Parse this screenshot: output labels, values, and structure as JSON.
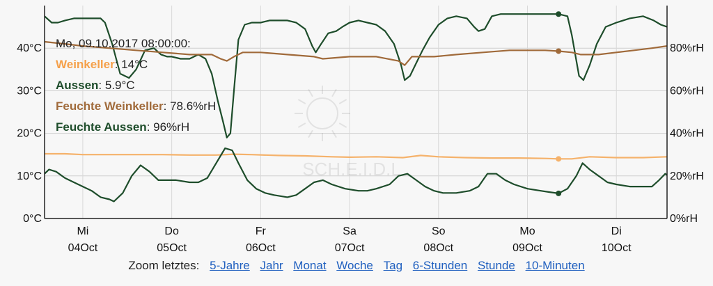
{
  "chart_data": {
    "type": "line",
    "title": "",
    "y_left": {
      "ylim": [
        0,
        50
      ],
      "ticks": [
        "0°C",
        "10°C",
        "20°C",
        "30°C",
        "40°C"
      ],
      "tick_values": [
        0,
        10,
        20,
        30,
        40
      ]
    },
    "y_right": {
      "ylim": [
        0,
        100
      ],
      "ticks": [
        "0%rH",
        "20%rH",
        "40%rH",
        "60%rH",
        "80%rH"
      ],
      "tick_values": [
        0,
        20,
        40,
        60,
        80
      ]
    },
    "x_days": [
      {
        "day": "Mi",
        "date": "04Oct"
      },
      {
        "day": "Do",
        "date": "05Oct"
      },
      {
        "day": "Fr",
        "date": "06Oct"
      },
      {
        "day": "Sa",
        "date": "07Oct"
      },
      {
        "day": "So",
        "date": "08Oct"
      },
      {
        "day": "Mo",
        "date": "09Oct"
      },
      {
        "day": "Di",
        "date": "10Oct"
      }
    ],
    "x_range_days": [
      -0.43,
      6.57
    ],
    "grid": true,
    "watermark": "SCH.E.I.D.L",
    "series": [
      {
        "name": "Feuchte Aussen",
        "axis": "right",
        "color": "#1e4d2b",
        "points": [
          [
            -0.43,
            95
          ],
          [
            -0.35,
            92
          ],
          [
            -0.28,
            92
          ],
          [
            -0.2,
            93
          ],
          [
            -0.1,
            94
          ],
          [
            0.0,
            94
          ],
          [
            0.1,
            94
          ],
          [
            0.2,
            94
          ],
          [
            0.25,
            92
          ],
          [
            0.33,
            82
          ],
          [
            0.42,
            68
          ],
          [
            0.52,
            66
          ],
          [
            0.6,
            70
          ],
          [
            0.7,
            79
          ],
          [
            0.8,
            80
          ],
          [
            0.88,
            77
          ],
          [
            0.95,
            76
          ],
          [
            1.0,
            76
          ],
          [
            1.1,
            75
          ],
          [
            1.2,
            75
          ],
          [
            1.3,
            77
          ],
          [
            1.38,
            75
          ],
          [
            1.45,
            68
          ],
          [
            1.52,
            55
          ],
          [
            1.58,
            45
          ],
          [
            1.62,
            38
          ],
          [
            1.66,
            40
          ],
          [
            1.7,
            60
          ],
          [
            1.75,
            84
          ],
          [
            1.82,
            91
          ],
          [
            1.9,
            92
          ],
          [
            2.0,
            92
          ],
          [
            2.1,
            93
          ],
          [
            2.2,
            93
          ],
          [
            2.3,
            93
          ],
          [
            2.4,
            92
          ],
          [
            2.5,
            89
          ],
          [
            2.58,
            81
          ],
          [
            2.62,
            78
          ],
          [
            2.68,
            82
          ],
          [
            2.76,
            87
          ],
          [
            2.85,
            88
          ],
          [
            2.92,
            90
          ],
          [
            3.0,
            92
          ],
          [
            3.1,
            93
          ],
          [
            3.2,
            92
          ],
          [
            3.3,
            91
          ],
          [
            3.4,
            88
          ],
          [
            3.5,
            82
          ],
          [
            3.58,
            72
          ],
          [
            3.62,
            65
          ],
          [
            3.68,
            67
          ],
          [
            3.75,
            73
          ],
          [
            3.82,
            79
          ],
          [
            3.9,
            85
          ],
          [
            4.0,
            91
          ],
          [
            4.1,
            94
          ],
          [
            4.2,
            95
          ],
          [
            4.32,
            94
          ],
          [
            4.4,
            90
          ],
          [
            4.45,
            88
          ],
          [
            4.52,
            89
          ],
          [
            4.6,
            95
          ],
          [
            4.7,
            96
          ],
          [
            4.8,
            96
          ],
          [
            4.95,
            96
          ],
          [
            5.1,
            96
          ],
          [
            5.3,
            96
          ],
          [
            5.35,
            96
          ],
          [
            5.45,
            95
          ],
          [
            5.5,
            86
          ],
          [
            5.58,
            67
          ],
          [
            5.63,
            65
          ],
          [
            5.7,
            72
          ],
          [
            5.78,
            82
          ],
          [
            5.88,
            90
          ],
          [
            6.0,
            92
          ],
          [
            6.15,
            94
          ],
          [
            6.3,
            95
          ],
          [
            6.42,
            93
          ],
          [
            6.5,
            91
          ],
          [
            6.57,
            90
          ]
        ]
      },
      {
        "name": "Feuchte Weinkeller",
        "axis": "right",
        "color": "#a06a3a",
        "points": [
          [
            -0.43,
            83
          ],
          [
            -0.2,
            82
          ],
          [
            0.0,
            81
          ],
          [
            0.3,
            80
          ],
          [
            0.6,
            79
          ],
          [
            0.9,
            78
          ],
          [
            1.2,
            77
          ],
          [
            1.45,
            77
          ],
          [
            1.55,
            75
          ],
          [
            1.62,
            74
          ],
          [
            1.7,
            76
          ],
          [
            1.8,
            78
          ],
          [
            2.0,
            78
          ],
          [
            2.3,
            77
          ],
          [
            2.6,
            76
          ],
          [
            2.7,
            75
          ],
          [
            3.0,
            76
          ],
          [
            3.3,
            76
          ],
          [
            3.55,
            74
          ],
          [
            3.62,
            72
          ],
          [
            3.7,
            76
          ],
          [
            3.8,
            76
          ],
          [
            3.95,
            76
          ],
          [
            4.2,
            77
          ],
          [
            4.5,
            78
          ],
          [
            4.8,
            79
          ],
          [
            5.0,
            79
          ],
          [
            5.2,
            79
          ],
          [
            5.35,
            78.6
          ],
          [
            5.5,
            78
          ],
          [
            5.6,
            77
          ],
          [
            5.8,
            77
          ],
          [
            6.0,
            78
          ],
          [
            6.2,
            79
          ],
          [
            6.4,
            80
          ],
          [
            6.57,
            81
          ]
        ]
      },
      {
        "name": "Weinkeller",
        "axis": "left",
        "color": "#f5b26b",
        "points": [
          [
            -0.43,
            15.2
          ],
          [
            -0.2,
            15.2
          ],
          [
            0.0,
            15.0
          ],
          [
            0.3,
            15.0
          ],
          [
            0.6,
            15.0
          ],
          [
            0.9,
            15.0
          ],
          [
            1.2,
            14.9
          ],
          [
            1.5,
            14.9
          ],
          [
            1.7,
            15.1
          ],
          [
            1.9,
            15.0
          ],
          [
            2.2,
            14.8
          ],
          [
            2.5,
            14.7
          ],
          [
            2.8,
            14.5
          ],
          [
            3.0,
            14.4
          ],
          [
            3.3,
            14.5
          ],
          [
            3.6,
            14.3
          ],
          [
            3.8,
            14.8
          ],
          [
            4.0,
            14.5
          ],
          [
            4.3,
            14.3
          ],
          [
            4.6,
            14.2
          ],
          [
            4.9,
            14.2
          ],
          [
            5.2,
            14.1
          ],
          [
            5.35,
            14.0
          ],
          [
            5.5,
            14.0
          ],
          [
            5.7,
            14.5
          ],
          [
            6.0,
            14.3
          ],
          [
            6.3,
            14.3
          ],
          [
            6.57,
            14.5
          ]
        ]
      },
      {
        "name": "Aussen",
        "axis": "left",
        "color": "#1e4d2b",
        "points": [
          [
            -0.43,
            10.5
          ],
          [
            -0.38,
            11.5
          ],
          [
            -0.3,
            11.0
          ],
          [
            -0.2,
            9.5
          ],
          [
            -0.1,
            8.5
          ],
          [
            0.0,
            7.5
          ],
          [
            0.1,
            6.5
          ],
          [
            0.2,
            5.0
          ],
          [
            0.3,
            4.5
          ],
          [
            0.35,
            4.0
          ],
          [
            0.45,
            6.0
          ],
          [
            0.55,
            10.0
          ],
          [
            0.65,
            12.5
          ],
          [
            0.75,
            11.0
          ],
          [
            0.85,
            9.0
          ],
          [
            0.95,
            9.0
          ],
          [
            1.05,
            9.0
          ],
          [
            1.2,
            8.5
          ],
          [
            1.3,
            8.5
          ],
          [
            1.4,
            9.5
          ],
          [
            1.5,
            13.0
          ],
          [
            1.6,
            16.5
          ],
          [
            1.68,
            16.0
          ],
          [
            1.75,
            13.0
          ],
          [
            1.85,
            9.0
          ],
          [
            1.95,
            7.0
          ],
          [
            2.05,
            6.0
          ],
          [
            2.15,
            5.5
          ],
          [
            2.3,
            5.0
          ],
          [
            2.4,
            5.5
          ],
          [
            2.5,
            7.0
          ],
          [
            2.6,
            8.5
          ],
          [
            2.7,
            9.0
          ],
          [
            2.8,
            8.0
          ],
          [
            2.95,
            7.0
          ],
          [
            3.1,
            6.5
          ],
          [
            3.2,
            6.5
          ],
          [
            3.3,
            7.0
          ],
          [
            3.45,
            8.0
          ],
          [
            3.55,
            10.0
          ],
          [
            3.65,
            10.5
          ],
          [
            3.75,
            9.0
          ],
          [
            3.85,
            7.5
          ],
          [
            3.95,
            6.5
          ],
          [
            4.05,
            6.0
          ],
          [
            4.2,
            6.0
          ],
          [
            4.35,
            6.5
          ],
          [
            4.45,
            7.5
          ],
          [
            4.5,
            9.0
          ],
          [
            4.55,
            10.5
          ],
          [
            4.65,
            10.5
          ],
          [
            4.75,
            9.0
          ],
          [
            4.85,
            8.0
          ],
          [
            5.0,
            7.0
          ],
          [
            5.15,
            6.5
          ],
          [
            5.25,
            6.2
          ],
          [
            5.35,
            5.9
          ],
          [
            5.45,
            7.0
          ],
          [
            5.55,
            10.0
          ],
          [
            5.62,
            13.0
          ],
          [
            5.7,
            11.5
          ],
          [
            5.8,
            10.0
          ],
          [
            5.9,
            8.5
          ],
          [
            6.0,
            8.0
          ],
          [
            6.15,
            7.5
          ],
          [
            6.3,
            7.5
          ],
          [
            6.4,
            7.5
          ],
          [
            6.48,
            9.0
          ],
          [
            6.55,
            10.5
          ],
          [
            6.57,
            10.2
          ]
        ]
      }
    ],
    "crosshair_x": 5.35
  },
  "tooltip": {
    "title": "Mo, 09.10.2017 08:00:00:",
    "rows": [
      {
        "name": "Weinkeller",
        "value": ": 14°C",
        "color": "#f5a04a"
      },
      {
        "name": "Aussen",
        "value": ": 5.9°C",
        "color": "#1e4d2b"
      },
      {
        "name": "Feuchte Weinkeller",
        "value": ": 78.6%rH",
        "color": "#a06a3a"
      },
      {
        "name": "Feuchte Aussen",
        "value": ": 96%rH",
        "color": "#1e4d2b"
      }
    ]
  },
  "zoom": {
    "label": "Zoom letztes:",
    "links": [
      "5-Jahre",
      "Jahr",
      "Monat",
      "Woche",
      "Tag",
      "6-Stunden",
      "Stunde",
      "10-Minuten"
    ]
  }
}
